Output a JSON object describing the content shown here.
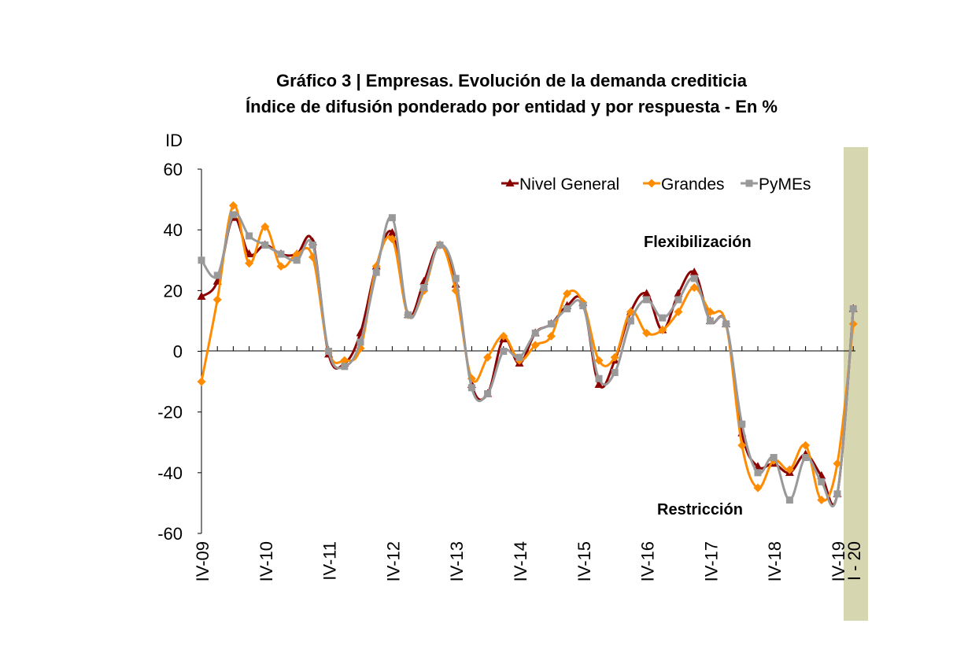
{
  "chart_data": {
    "type": "line",
    "title": "Gráfico 3 | Empresas. Evolución de la demanda crediticia",
    "subtitle": "Índice de difusión ponderado por entidad y por respuesta - En %",
    "ylabel": "ID",
    "ylim": [
      -60,
      60
    ],
    "yticks": [
      "60",
      "40",
      "20",
      "0",
      "-20",
      "-40",
      "-60"
    ],
    "xtick_labels": [
      "IV-09",
      "IV-10",
      "IV-11",
      "IV-12",
      "IV-13",
      "IV-14",
      "IV-15",
      "IV-16",
      "IV-17",
      "IV-18",
      "IV-19",
      "I - 20"
    ],
    "xtick_quarters": [
      0,
      4,
      8,
      12,
      16,
      20,
      24,
      28,
      32,
      36,
      40,
      41
    ],
    "highlight_quarter": 41,
    "annotations": {
      "up": "Flexibilización",
      "down": "Restricción"
    },
    "legend_position": "top-right",
    "colors": {
      "nivel": "#8b0000",
      "grandes": "#ff8c00",
      "pymes": "#999999",
      "highlight": "#d6d6b1"
    },
    "series": [
      {
        "name": "Nivel General",
        "marker": "triangle",
        "values": [
          18,
          23,
          44,
          32,
          35,
          32,
          32,
          36,
          -1,
          -4,
          6,
          28,
          39,
          12,
          23,
          35,
          22,
          -11,
          -14,
          4,
          -4,
          6,
          9,
          15,
          16,
          -11,
          -3,
          13,
          19,
          7,
          19,
          26,
          10,
          9,
          -27,
          -38,
          -37,
          -40,
          -34,
          -41,
          -47,
          14
        ]
      },
      {
        "name": "Grandes",
        "marker": "diamond",
        "values": [
          -10,
          17,
          48,
          29,
          41,
          28,
          32,
          31,
          0,
          -3,
          1,
          28,
          37,
          12,
          20,
          35,
          20,
          -9,
          -2,
          5,
          -3,
          2,
          5,
          19,
          16,
          -3,
          -2,
          13,
          6,
          7,
          13,
          21,
          13,
          9,
          -31,
          -45,
          -36,
          -39,
          -31,
          -49,
          -37,
          9
        ]
      },
      {
        "name": "PyMEs",
        "marker": "square",
        "values": [
          30,
          25,
          45,
          38,
          35,
          32,
          30,
          35,
          0,
          -5,
          3,
          26,
          44,
          12,
          21,
          35,
          24,
          -12,
          -14,
          0,
          -2,
          6,
          9,
          14,
          15,
          -9,
          -7,
          10,
          17,
          11,
          17,
          24,
          10,
          9,
          -24,
          -40,
          -35,
          -49,
          -35,
          -43,
          -47,
          14
        ]
      }
    ]
  }
}
